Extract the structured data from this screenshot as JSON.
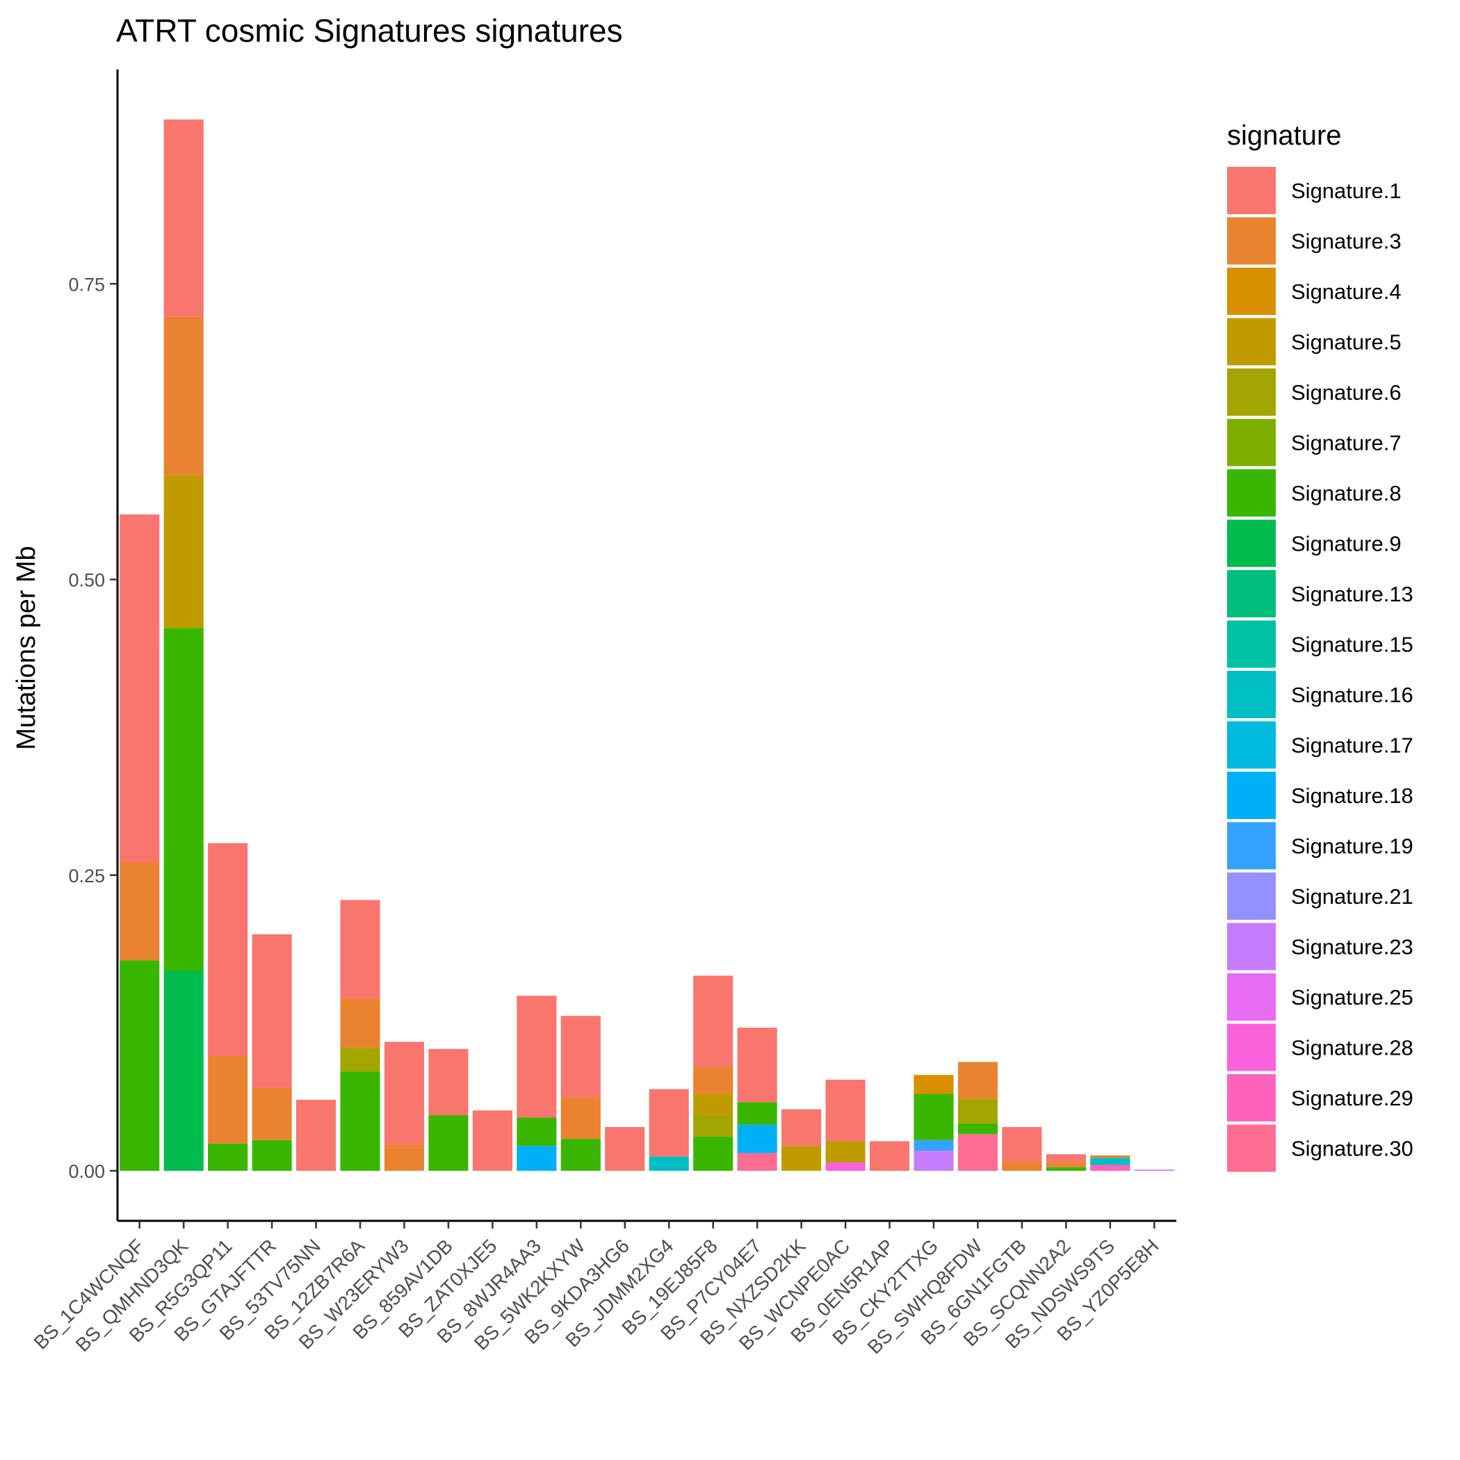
{
  "chart_data": {
    "type": "bar",
    "stacked": true,
    "title": "ATRT cosmic Signatures signatures",
    "xlabel": "",
    "ylabel": "Mutations per Mb",
    "ylim": [
      -0.04,
      0.93
    ],
    "yticks": [
      "0.00",
      "0.25",
      "0.50",
      "0.75"
    ],
    "legend_title": "signature",
    "legend_position": "right",
    "grid": false,
    "signatures": [
      {
        "name": "Signature.1",
        "color": "#F8766D"
      },
      {
        "name": "Signature.3",
        "color": "#EA8331"
      },
      {
        "name": "Signature.4",
        "color": "#D89000"
      },
      {
        "name": "Signature.5",
        "color": "#C09B00"
      },
      {
        "name": "Signature.6",
        "color": "#A3A500"
      },
      {
        "name": "Signature.7",
        "color": "#7CAE00"
      },
      {
        "name": "Signature.8",
        "color": "#39B600"
      },
      {
        "name": "Signature.9",
        "color": "#00BB4E"
      },
      {
        "name": "Signature.13",
        "color": "#00BF7D"
      },
      {
        "name": "Signature.15",
        "color": "#00C1A3"
      },
      {
        "name": "Signature.16",
        "color": "#00BFC4"
      },
      {
        "name": "Signature.17",
        "color": "#00BAE0"
      },
      {
        "name": "Signature.18",
        "color": "#00B0F6"
      },
      {
        "name": "Signature.19",
        "color": "#35A2FF"
      },
      {
        "name": "Signature.21",
        "color": "#9590FF"
      },
      {
        "name": "Signature.23",
        "color": "#C77CFF"
      },
      {
        "name": "Signature.25",
        "color": "#E76BF3"
      },
      {
        "name": "Signature.28",
        "color": "#FA62DB"
      },
      {
        "name": "Signature.29",
        "color": "#FF62BC"
      },
      {
        "name": "Signature.30",
        "color": "#FF6C91"
      }
    ],
    "categories": [
      {
        "label": "BS_1C4WCNQF",
        "stack": [
          {
            "sig": "Signature.8",
            "value": 0.178
          },
          {
            "sig": "Signature.3",
            "value": 0.083
          },
          {
            "sig": "Signature.1",
            "value": 0.294
          }
        ]
      },
      {
        "label": "BS_QMHND3QK",
        "stack": [
          {
            "sig": "Signature.9",
            "value": 0.169
          },
          {
            "sig": "Signature.8",
            "value": 0.29
          },
          {
            "sig": "Signature.5",
            "value": 0.129
          },
          {
            "sig": "Signature.3",
            "value": 0.134
          },
          {
            "sig": "Signature.1",
            "value": 0.167
          }
        ]
      },
      {
        "label": "BS_R5G3QP11",
        "stack": [
          {
            "sig": "Signature.8",
            "value": 0.023
          },
          {
            "sig": "Signature.3",
            "value": 0.074
          },
          {
            "sig": "Signature.1",
            "value": 0.18
          }
        ]
      },
      {
        "label": "BS_GTAJFTTR",
        "stack": [
          {
            "sig": "Signature.8",
            "value": 0.026
          },
          {
            "sig": "Signature.3",
            "value": 0.044
          },
          {
            "sig": "Signature.1",
            "value": 0.13
          }
        ]
      },
      {
        "label": "BS_53TV75NN",
        "stack": [
          {
            "sig": "Signature.1",
            "value": 0.06
          }
        ]
      },
      {
        "label": "BS_12ZB7R6A",
        "stack": [
          {
            "sig": "Signature.8",
            "value": 0.084
          },
          {
            "sig": "Signature.6",
            "value": 0.02
          },
          {
            "sig": "Signature.3",
            "value": 0.042
          },
          {
            "sig": "Signature.1",
            "value": 0.083
          }
        ]
      },
      {
        "label": "BS_W23ERYW3",
        "stack": [
          {
            "sig": "Signature.3",
            "value": 0.022
          },
          {
            "sig": "Signature.1",
            "value": 0.087
          }
        ]
      },
      {
        "label": "BS_859AV1DB",
        "stack": [
          {
            "sig": "Signature.8",
            "value": 0.047
          },
          {
            "sig": "Signature.1",
            "value": 0.056
          }
        ]
      },
      {
        "label": "BS_ZAT0XJE5",
        "stack": [
          {
            "sig": "Signature.1",
            "value": 0.051
          }
        ]
      },
      {
        "label": "BS_8WJR4AA3",
        "stack": [
          {
            "sig": "Signature.18",
            "value": 0.021
          },
          {
            "sig": "Signature.8",
            "value": 0.024
          },
          {
            "sig": "Signature.1",
            "value": 0.103
          }
        ]
      },
      {
        "label": "BS_5WK2KXYW",
        "stack": [
          {
            "sig": "Signature.8",
            "value": 0.027
          },
          {
            "sig": "Signature.3",
            "value": 0.035
          },
          {
            "sig": "Signature.1",
            "value": 0.069
          }
        ]
      },
      {
        "label": "BS_9KDA3HG6",
        "stack": [
          {
            "sig": "Signature.1",
            "value": 0.037
          }
        ]
      },
      {
        "label": "BS_JDMM2XG4",
        "stack": [
          {
            "sig": "Signature.16",
            "value": 0.012
          },
          {
            "sig": "Signature.1",
            "value": 0.057
          }
        ]
      },
      {
        "label": "BS_19EJ85F8",
        "stack": [
          {
            "sig": "Signature.8",
            "value": 0.029
          },
          {
            "sig": "Signature.6",
            "value": 0.018
          },
          {
            "sig": "Signature.5",
            "value": 0.018
          },
          {
            "sig": "Signature.3",
            "value": 0.023
          },
          {
            "sig": "Signature.1",
            "value": 0.077
          }
        ]
      },
      {
        "label": "BS_P7CY04E7",
        "stack": [
          {
            "sig": "Signature.30",
            "value": 0.015
          },
          {
            "sig": "Signature.18",
            "value": 0.024
          },
          {
            "sig": "Signature.8",
            "value": 0.019
          },
          {
            "sig": "Signature.1",
            "value": 0.063
          }
        ]
      },
      {
        "label": "BS_NXZSD2KK",
        "stack": [
          {
            "sig": "Signature.5",
            "value": 0.021
          },
          {
            "sig": "Signature.1",
            "value": 0.031
          }
        ]
      },
      {
        "label": "BS_WCNPE0AC",
        "stack": [
          {
            "sig": "Signature.28",
            "value": 0.007
          },
          {
            "sig": "Signature.5",
            "value": 0.018
          },
          {
            "sig": "Signature.1",
            "value": 0.052
          }
        ]
      },
      {
        "label": "BS_0EN5R1AP",
        "stack": [
          {
            "sig": "Signature.1",
            "value": 0.025
          }
        ]
      },
      {
        "label": "BS_CKY2TTXG",
        "stack": [
          {
            "sig": "Signature.23",
            "value": 0.017
          },
          {
            "sig": "Signature.19",
            "value": 0.009
          },
          {
            "sig": "Signature.8",
            "value": 0.039
          },
          {
            "sig": "Signature.4",
            "value": 0.016
          }
        ]
      },
      {
        "label": "BS_SWHQ8FDW",
        "stack": [
          {
            "sig": "Signature.30",
            "value": 0.031
          },
          {
            "sig": "Signature.8",
            "value": 0.009
          },
          {
            "sig": "Signature.6",
            "value": 0.021
          },
          {
            "sig": "Signature.3",
            "value": 0.031
          }
        ]
      },
      {
        "label": "BS_6GN1FGTB",
        "stack": [
          {
            "sig": "Signature.3",
            "value": 0.008
          },
          {
            "sig": "Signature.1",
            "value": 0.029
          }
        ]
      },
      {
        "label": "BS_SCQNN2A2",
        "stack": [
          {
            "sig": "Signature.8",
            "value": 0.003
          },
          {
            "sig": "Signature.3",
            "value": 0.004
          },
          {
            "sig": "Signature.1",
            "value": 0.007
          }
        ]
      },
      {
        "label": "BS_NDSWS9TS",
        "stack": [
          {
            "sig": "Signature.29",
            "value": 0.005
          },
          {
            "sig": "Signature.16",
            "value": 0.006
          },
          {
            "sig": "Signature.3",
            "value": 0.002
          }
        ]
      },
      {
        "label": "BS_YZ0P5E8H",
        "stack": [
          {
            "sig": "Signature.23",
            "value": 0.001
          }
        ]
      }
    ]
  }
}
